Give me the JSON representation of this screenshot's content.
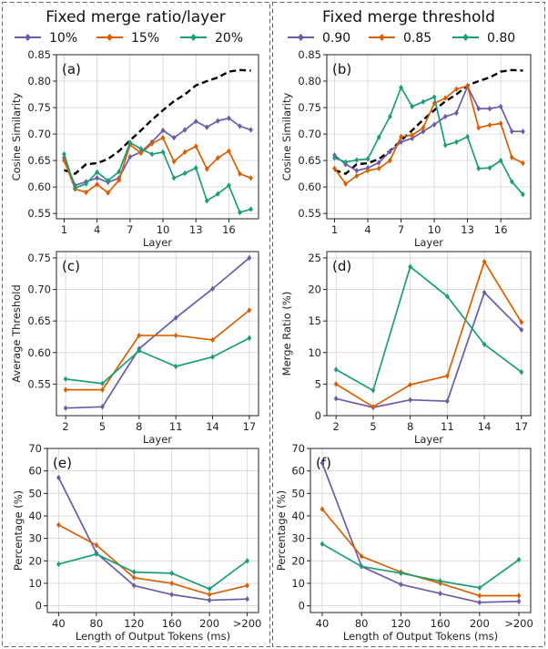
{
  "columns": [
    {
      "title": "Fixed merge ratio/layer",
      "legend": [
        {
          "label": "10%",
          "color": "#6f5aa8"
        },
        {
          "label": "15%",
          "color": "#d95f02"
        },
        {
          "label": "20%",
          "color": "#1b9e77"
        }
      ]
    },
    {
      "title": "Fixed merge threshold",
      "legend": [
        {
          "label": "0.90",
          "color": "#6f5aa8"
        },
        {
          "label": "0.85",
          "color": "#d95f02"
        },
        {
          "label": "0.80",
          "color": "#1b9e77"
        }
      ]
    }
  ],
  "chart_data": [
    {
      "tag": "(a)",
      "type": "line",
      "xlabel": "Layer",
      "ylabel": "Cosine Similarity",
      "xlim": [
        0.3,
        18.7
      ],
      "ylim": [
        0.54,
        0.85
      ],
      "xticks": [
        1,
        4,
        7,
        10,
        13,
        16
      ],
      "xtick_labels": [
        "1",
        "4",
        "7",
        "10",
        "13",
        "16"
      ],
      "yticks": [
        0.55,
        0.6,
        0.65,
        0.7,
        0.75,
        0.8,
        0.85
      ],
      "ytick_labels": [
        "0.55",
        "0.60",
        "0.65",
        "0.70",
        "0.75",
        "0.80",
        "0.85"
      ],
      "baseline": {
        "x": [
          1,
          2,
          3,
          4,
          5,
          6,
          7,
          8,
          9,
          10,
          11,
          12,
          13,
          14,
          15,
          16,
          17,
          18
        ],
        "y": [
          0.632,
          0.625,
          0.643,
          0.645,
          0.653,
          0.668,
          0.688,
          0.707,
          0.727,
          0.745,
          0.762,
          0.775,
          0.792,
          0.8,
          0.807,
          0.818,
          0.821,
          0.82
        ]
      },
      "series": [
        {
          "name": "10%",
          "color": "#6f5aa8",
          "x": [
            1,
            2,
            3,
            4,
            5,
            6,
            7,
            8,
            9,
            10,
            11,
            12,
            13,
            14,
            15,
            16,
            17,
            18
          ],
          "y": [
            0.655,
            0.603,
            0.61,
            0.617,
            0.609,
            0.617,
            0.657,
            0.666,
            0.685,
            0.707,
            0.693,
            0.708,
            0.724,
            0.713,
            0.725,
            0.73,
            0.715,
            0.708
          ]
        },
        {
          "name": "15%",
          "color": "#d95f02",
          "x": [
            1,
            2,
            3,
            4,
            5,
            6,
            7,
            8,
            9,
            10,
            11,
            12,
            13,
            14,
            15,
            16,
            17,
            18
          ],
          "y": [
            0.65,
            0.596,
            0.59,
            0.605,
            0.589,
            0.613,
            0.68,
            0.664,
            0.682,
            0.693,
            0.648,
            0.666,
            0.677,
            0.634,
            0.655,
            0.668,
            0.625,
            0.617
          ]
        },
        {
          "name": "20%",
          "color": "#1b9e77",
          "x": [
            1,
            2,
            3,
            4,
            5,
            6,
            7,
            8,
            9,
            10,
            11,
            12,
            13,
            14,
            15,
            16,
            17,
            18
          ],
          "y": [
            0.662,
            0.598,
            0.606,
            0.628,
            0.612,
            0.629,
            0.684,
            0.672,
            0.662,
            0.666,
            0.617,
            0.626,
            0.636,
            0.574,
            0.587,
            0.603,
            0.552,
            0.558
          ]
        }
      ]
    },
    {
      "tag": "(b)",
      "type": "line",
      "xlabel": "Layer",
      "ylabel": "Cosine Similarity",
      "xlim": [
        0.3,
        18.7
      ],
      "ylim": [
        0.54,
        0.85
      ],
      "xticks": [
        1,
        4,
        7,
        10,
        13,
        16
      ],
      "xtick_labels": [
        "1",
        "4",
        "7",
        "10",
        "13",
        "16"
      ],
      "yticks": [
        0.55,
        0.6,
        0.65,
        0.7,
        0.75,
        0.8,
        0.85
      ],
      "ytick_labels": [
        "0.55",
        "0.60",
        "0.65",
        "0.70",
        "0.75",
        "0.80",
        "0.85"
      ],
      "baseline": {
        "x": [
          1,
          2,
          3,
          4,
          5,
          6,
          7,
          8,
          9,
          10,
          11,
          12,
          13,
          14,
          15,
          16,
          17,
          18
        ],
        "y": [
          0.632,
          0.625,
          0.643,
          0.645,
          0.653,
          0.668,
          0.688,
          0.707,
          0.727,
          0.745,
          0.762,
          0.775,
          0.792,
          0.8,
          0.807,
          0.818,
          0.821,
          0.82
        ]
      },
      "series": [
        {
          "name": "0.90",
          "color": "#6f5aa8",
          "x": [
            1,
            2,
            3,
            4,
            5,
            6,
            7,
            8,
            9,
            10,
            11,
            12,
            13,
            14,
            15,
            16,
            17,
            18
          ],
          "y": [
            0.66,
            0.643,
            0.631,
            0.636,
            0.646,
            0.667,
            0.685,
            0.692,
            0.705,
            0.718,
            0.733,
            0.74,
            0.79,
            0.748,
            0.748,
            0.752,
            0.705,
            0.705
          ]
        },
        {
          "name": "0.85",
          "color": "#d95f02",
          "x": [
            1,
            2,
            3,
            4,
            5,
            6,
            7,
            8,
            9,
            10,
            11,
            12,
            13,
            14,
            15,
            16,
            17,
            18
          ],
          "y": [
            0.635,
            0.606,
            0.621,
            0.631,
            0.635,
            0.65,
            0.695,
            0.698,
            0.712,
            0.758,
            0.768,
            0.785,
            0.791,
            0.712,
            0.717,
            0.72,
            0.656,
            0.645
          ]
        },
        {
          "name": "0.80",
          "color": "#1b9e77",
          "x": [
            1,
            2,
            3,
            4,
            5,
            6,
            7,
            8,
            9,
            10,
            11,
            12,
            13,
            14,
            15,
            16,
            17,
            18
          ],
          "y": [
            0.655,
            0.647,
            0.651,
            0.653,
            0.694,
            0.733,
            0.788,
            0.752,
            0.761,
            0.77,
            0.679,
            0.685,
            0.695,
            0.635,
            0.636,
            0.65,
            0.61,
            0.586
          ]
        }
      ]
    },
    {
      "tag": "(c)",
      "type": "line",
      "xlabel": "Layer",
      "ylabel": "Average Threshold",
      "xlim": [
        1.25,
        17.75
      ],
      "ylim": [
        0.5,
        0.76
      ],
      "xticks": [
        2,
        5,
        8,
        11,
        14,
        17
      ],
      "xtick_labels": [
        "2",
        "5",
        "8",
        "11",
        "14",
        "17"
      ],
      "yticks": [
        0.55,
        0.6,
        0.65,
        0.7,
        0.75
      ],
      "ytick_labels": [
        "0.55",
        "0.60",
        "0.65",
        "0.70",
        "0.75"
      ],
      "series": [
        {
          "name": "10%",
          "color": "#6f5aa8",
          "x": [
            2,
            5,
            8,
            11,
            14,
            17
          ],
          "y": [
            0.512,
            0.514,
            0.606,
            0.655,
            0.701,
            0.75
          ]
        },
        {
          "name": "15%",
          "color": "#d95f02",
          "x": [
            2,
            5,
            8,
            11,
            14,
            17
          ],
          "y": [
            0.541,
            0.541,
            0.627,
            0.627,
            0.62,
            0.667
          ]
        },
        {
          "name": "20%",
          "color": "#1b9e77",
          "x": [
            2,
            5,
            8,
            11,
            14,
            17
          ],
          "y": [
            0.558,
            0.551,
            0.603,
            0.578,
            0.593,
            0.623
          ]
        }
      ]
    },
    {
      "tag": "(d)",
      "type": "line",
      "xlabel": "Layer",
      "ylabel": "Merge Ratio (%)",
      "xlim": [
        1.25,
        17.75
      ],
      "ylim": [
        0,
        26
      ],
      "xticks": [
        2,
        5,
        8,
        11,
        14,
        17
      ],
      "xtick_labels": [
        "2",
        "5",
        "8",
        "11",
        "14",
        "17"
      ],
      "yticks": [
        0,
        5,
        10,
        15,
        20,
        25
      ],
      "ytick_labels": [
        "0",
        "5",
        "10",
        "15",
        "20",
        "25"
      ],
      "series": [
        {
          "name": "0.90",
          "color": "#6f5aa8",
          "x": [
            2,
            5,
            8,
            11,
            14,
            17
          ],
          "y": [
            2.7,
            1.3,
            2.5,
            2.3,
            19.5,
            13.6
          ]
        },
        {
          "name": "0.85",
          "color": "#d95f02",
          "x": [
            2,
            5,
            8,
            11,
            14,
            17
          ],
          "y": [
            5.0,
            1.4,
            4.9,
            6.3,
            24.4,
            14.8
          ]
        },
        {
          "name": "0.80",
          "color": "#1b9e77",
          "x": [
            2,
            5,
            8,
            11,
            14,
            17
          ],
          "y": [
            7.3,
            4.0,
            23.6,
            18.9,
            11.3,
            6.9
          ]
        }
      ]
    },
    {
      "tag": "(e)",
      "type": "line",
      "xlabel": "Length of Output Tokens (ms)",
      "ylabel": "Percentage (%)",
      "xlim": [
        -0.3,
        5.3
      ],
      "ylim": [
        -3,
        70
      ],
      "xticks": [
        0,
        1,
        2,
        3,
        4,
        5
      ],
      "xtick_labels": [
        "40",
        "80",
        "120",
        "160",
        "200",
        ">200"
      ],
      "yticks": [
        0,
        10,
        20,
        30,
        40,
        50,
        60,
        70
      ],
      "ytick_labels": [
        "0",
        "10",
        "20",
        "30",
        "40",
        "50",
        "60",
        "70"
      ],
      "series": [
        {
          "name": "10%",
          "color": "#6f5aa8",
          "x": [
            0,
            1,
            2,
            3,
            4,
            5
          ],
          "y": [
            57,
            23.5,
            9,
            5,
            2.5,
            3
          ]
        },
        {
          "name": "15%",
          "color": "#d95f02",
          "x": [
            0,
            1,
            2,
            3,
            4,
            5
          ],
          "y": [
            36,
            27,
            12.5,
            10,
            5,
            9
          ]
        },
        {
          "name": "20%",
          "color": "#1b9e77",
          "x": [
            0,
            1,
            2,
            3,
            4,
            5
          ],
          "y": [
            18.5,
            23,
            15,
            14.5,
            7.5,
            20
          ]
        }
      ]
    },
    {
      "tag": "(f)",
      "type": "line",
      "xlabel": "Length of Output Tokens (ms)",
      "ylabel": "Percentage (%)",
      "xlim": [
        -0.3,
        5.3
      ],
      "ylim": [
        -3,
        70
      ],
      "xticks": [
        0,
        1,
        2,
        3,
        4,
        5
      ],
      "xtick_labels": [
        "40",
        "80",
        "120",
        "160",
        "200",
        ">200"
      ],
      "yticks": [
        0,
        10,
        20,
        30,
        40,
        50,
        60,
        70
      ],
      "ytick_labels": [
        "0",
        "10",
        "20",
        "30",
        "40",
        "50",
        "60",
        "70"
      ],
      "series": [
        {
          "name": "0.90",
          "color": "#6f5aa8",
          "x": [
            0,
            1,
            2,
            3,
            4,
            5
          ],
          "y": [
            63.5,
            17.5,
            9.5,
            5.5,
            1.5,
            2
          ]
        },
        {
          "name": "0.85",
          "color": "#d95f02",
          "x": [
            0,
            1,
            2,
            3,
            4,
            5
          ],
          "y": [
            43,
            22,
            15,
            10,
            4.5,
            4.5
          ]
        },
        {
          "name": "0.80",
          "color": "#1b9e77",
          "x": [
            0,
            1,
            2,
            3,
            4,
            5
          ],
          "y": [
            27.5,
            17.5,
            14.5,
            11,
            8,
            20.5
          ]
        }
      ]
    }
  ]
}
